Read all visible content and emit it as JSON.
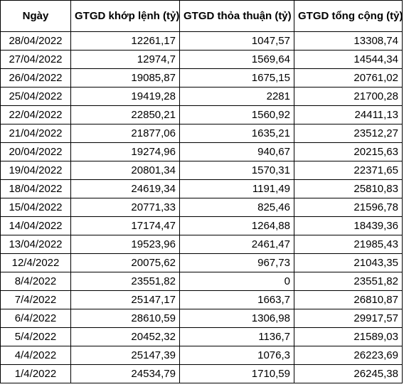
{
  "headers": [
    "Ngày",
    "GTGD khớp lệnh (tỷ)",
    "GTGD thỏa thuận (tỷ)",
    "GTGD tổng cộng (tỷ)"
  ],
  "rows": [
    [
      "28/04/2022",
      "12261,17",
      "1047,57",
      "13308,74"
    ],
    [
      "27/04/2022",
      "12974,7",
      "1569,64",
      "14544,34"
    ],
    [
      "26/04/2022",
      "19085,87",
      "1675,15",
      "20761,02"
    ],
    [
      "25/04/2022",
      "19419,28",
      "2281",
      "21700,28"
    ],
    [
      "22/04/2022",
      "22850,21",
      "1560,92",
      "24411,13"
    ],
    [
      "21/04/2022",
      "21877,06",
      "1635,21",
      "23512,27"
    ],
    [
      "20/04/2022",
      "19274,96",
      "940,67",
      "20215,63"
    ],
    [
      "19/04/2022",
      "20801,34",
      "1570,31",
      "22371,65"
    ],
    [
      "18/04/2022",
      "24619,34",
      "1191,49",
      "25810,83"
    ],
    [
      "15/04/2022",
      "20771,33",
      "825,46",
      "21596,78"
    ],
    [
      "14/04/2022",
      "17174,47",
      "1264,88",
      "18439,36"
    ],
    [
      "13/04/2022",
      "19523,96",
      "2461,47",
      "21985,43"
    ],
    [
      "12/4/2022",
      "20075,62",
      "967,73",
      "21043,35"
    ],
    [
      "8/4/2022",
      "23551,82",
      "0",
      "23551,82"
    ],
    [
      "7/4/2022",
      "25147,17",
      "1663,7",
      "26810,87"
    ],
    [
      "6/4/2022",
      "28610,59",
      "1306,98",
      "29917,57"
    ],
    [
      "5/4/2022",
      "20452,32",
      "1136,7",
      "21589,03"
    ],
    [
      "4/4/2022",
      "25147,39",
      "1076,3",
      "26223,69"
    ],
    [
      "1/4/2022",
      "24534,79",
      "1710,59",
      "26245,38"
    ]
  ]
}
